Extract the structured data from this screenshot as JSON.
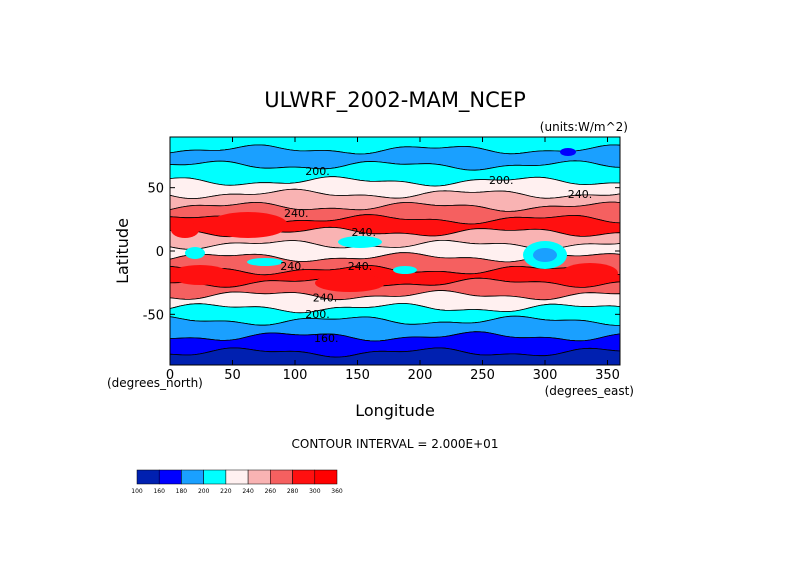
{
  "chart_data": {
    "type": "contour",
    "title": "ULWRF_2002-MAM_NCEP",
    "units": "(units:W/m^2)",
    "xlabel": "Longitude",
    "ylabel": "Latitude",
    "x_unit_note": "(degrees_east)",
    "y_unit_note": "(degrees_north)",
    "xlim": [
      0,
      360
    ],
    "ylim": [
      -90,
      90
    ],
    "x_ticks": [
      0,
      50,
      100,
      150,
      200,
      250,
      300,
      350
    ],
    "y_ticks": [
      -50,
      0,
      50
    ],
    "contour_interval_text": "CONTOUR INTERVAL = 2.000E+01",
    "contour_levels": [
      100,
      160,
      180,
      200,
      220,
      240,
      260,
      280,
      300,
      360
    ],
    "contour_labels": [
      {
        "text": "200.",
        "lon": 118,
        "lat": 60
      },
      {
        "text": "200.",
        "lon": 265,
        "lat": 53
      },
      {
        "text": "240.",
        "lon": 328,
        "lat": 42
      },
      {
        "text": "240.",
        "lon": 101,
        "lat": 27
      },
      {
        "text": "240.",
        "lon": 155,
        "lat": 12
      },
      {
        "text": "240.",
        "lon": 98,
        "lat": -15
      },
      {
        "text": "240.",
        "lon": 152,
        "lat": -15
      },
      {
        "text": "240.",
        "lon": 124,
        "lat": -40
      },
      {
        "text": "200.",
        "lon": 118,
        "lat": -53
      },
      {
        "text": "160.",
        "lon": 125,
        "lat": -72
      }
    ],
    "colorbar": {
      "labels": [
        "100",
        "160",
        "180",
        "200",
        "220",
        "240",
        "260",
        "280",
        "300",
        "360"
      ],
      "colors": [
        "#0020b0",
        "#0000ff",
        "#1aa0ff",
        "#00ffff",
        "#fff0f0",
        "#f9b3b3",
        "#f56060",
        "#ff1010",
        "#ff0000"
      ]
    },
    "bands": [
      {
        "lat": 85,
        "value": 200
      },
      {
        "lat": 75,
        "value": 195
      },
      {
        "lat": 60,
        "value": 215
      },
      {
        "lat": 50,
        "value": 230
      },
      {
        "lat": 40,
        "value": 250
      },
      {
        "lat": 30,
        "value": 265
      },
      {
        "lat": 20,
        "value": 285
      },
      {
        "lat": 10,
        "value": 255
      },
      {
        "lat": 0,
        "value": 235
      },
      {
        "lat": -10,
        "value": 260
      },
      {
        "lat": -20,
        "value": 280
      },
      {
        "lat": -30,
        "value": 262
      },
      {
        "lat": -40,
        "value": 232
      },
      {
        "lat": -50,
        "value": 212
      },
      {
        "lat": -60,
        "value": 190
      },
      {
        "lat": -75,
        "value": 170
      },
      {
        "lat": -85,
        "value": 150
      }
    ]
  }
}
